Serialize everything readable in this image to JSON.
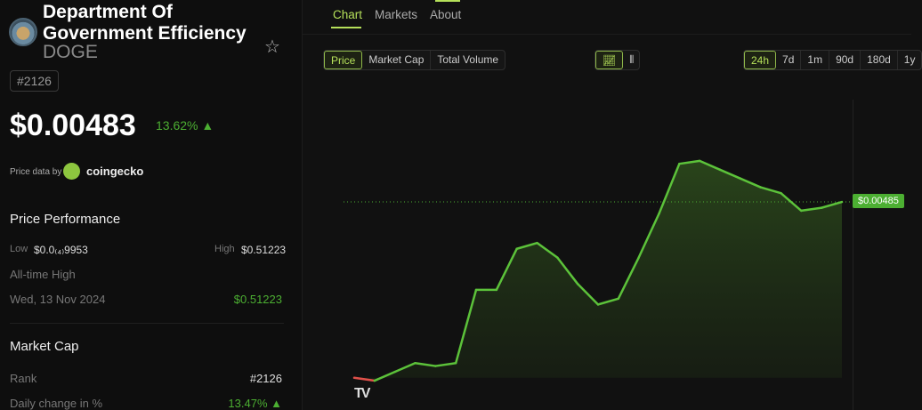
{
  "coin": {
    "name": "Department Of Government Efficiency",
    "name_line1": "Department Of",
    "name_line2": "Government Efficiency",
    "symbol": "DOGE",
    "rank_badge": "#2126",
    "price": "$0.00483",
    "change_24h": "13.62% ▲",
    "price_data_by": "Price data by",
    "provider": "coingecko"
  },
  "performance": {
    "title": "Price Performance",
    "low_label": "Low",
    "low_value": "$0.0₍₄₎9953",
    "high_label": "High",
    "high_value": "$0.51223",
    "ath_label": "All-time High",
    "ath_date": "Wed, 13 Nov 2024",
    "ath_value": "$0.51223"
  },
  "market_cap": {
    "title": "Market Cap",
    "rank_label": "Rank",
    "rank_value": "#2126",
    "daily_label": "Daily change in %",
    "daily_value": "13.47% ▲"
  },
  "tabs": [
    {
      "label": "Chart",
      "active": true
    },
    {
      "label": "Markets"
    },
    {
      "label": "About"
    }
  ],
  "metric_buttons": [
    {
      "label": "Price",
      "active": true
    },
    {
      "label": "Market Cap"
    },
    {
      "label": "Total Volume"
    }
  ],
  "chart_type_buttons": [
    {
      "icon": "line-chart-icon",
      "active": true
    },
    {
      "icon": "candlestick-icon"
    }
  ],
  "range_buttons": [
    {
      "label": "24h",
      "active": true
    },
    {
      "label": "7d"
    },
    {
      "label": "1m"
    },
    {
      "label": "90d"
    },
    {
      "label": "180d"
    },
    {
      "label": "1y"
    }
  ],
  "colors": {
    "accent": "#b5e05a",
    "up": "#4caf32",
    "down": "#e0504a"
  },
  "chart_data": {
    "type": "area",
    "current_price_label": "$0.00485",
    "current_price": 0.00485,
    "range": "24h",
    "values": [
      0.00425,
      0.00424,
      0.00427,
      0.0043,
      0.00429,
      0.0043,
      0.00455,
      0.00455,
      0.00469,
      0.00471,
      0.00466,
      0.00457,
      0.0045,
      0.00452,
      0.00466,
      0.00481,
      0.00498,
      0.00499,
      0.00496,
      0.00493,
      0.0049,
      0.00488,
      0.00482,
      0.00483,
      0.00485
    ],
    "ylim": [
      0.00414,
      0.00519
    ],
    "grid": false,
    "watermark": "TV"
  }
}
